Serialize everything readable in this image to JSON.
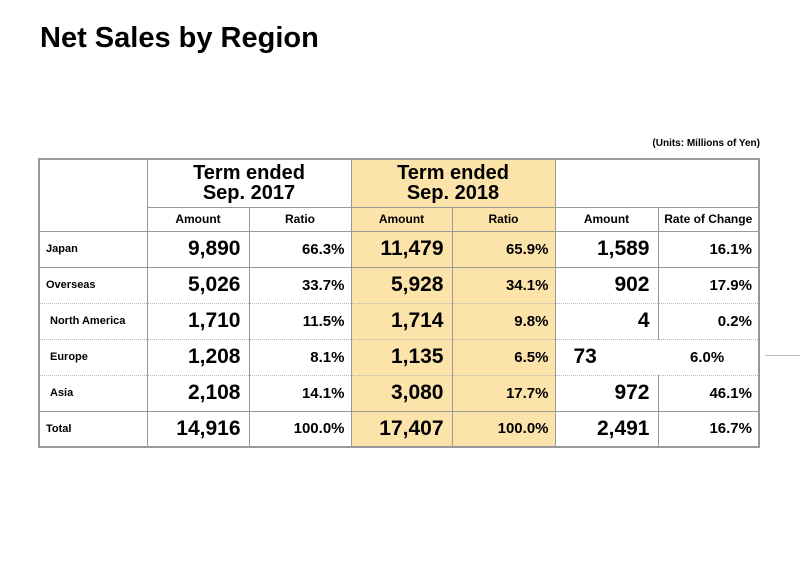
{
  "title": "Net Sales by Region",
  "units": "(Units: Millions of Yen)",
  "headers": {
    "term1": [
      "Term ended",
      "Sep. 2017"
    ],
    "term2": [
      "Term ended",
      "Sep. 2018"
    ],
    "sub": [
      "Amount",
      "Ratio",
      "Amount",
      "Ratio",
      "Amount",
      "Rate of Change"
    ]
  },
  "rows": [
    {
      "label": "Japan",
      "a2017": "9,890",
      "r2017": "66.3%",
      "a2018": "11,479",
      "r2018": "65.9%",
      "chg_amt": "1,589",
      "chg_rate": "16.1%"
    },
    {
      "label": "Overseas",
      "a2017": "5,026",
      "r2017": "33.7%",
      "a2018": "5,928",
      "r2018": "34.1%",
      "chg_amt": "902",
      "chg_rate": "17.9%"
    },
    {
      "label": "North America",
      "a2017": "1,710",
      "r2017": "11.5%",
      "a2018": "1,714",
      "r2018": "9.8%",
      "chg_amt": "4",
      "chg_rate": "0.2%"
    },
    {
      "label": "Europe",
      "a2017": "1,208",
      "r2017": "8.1%",
      "a2018": "1,135",
      "r2018": "6.5%",
      "chg_amt": "73",
      "chg_rate": "6.0%"
    },
    {
      "label": "Asia",
      "a2017": "2,108",
      "r2017": "14.1%",
      "a2018": "3,080",
      "r2018": "17.7%",
      "chg_amt": "972",
      "chg_rate": "46.1%"
    },
    {
      "label": "Total",
      "a2017": "14,916",
      "r2017": "100.0%",
      "a2018": "17,407",
      "r2018": "100.0%",
      "chg_amt": "2,491",
      "chg_rate": "16.7%"
    }
  ]
}
